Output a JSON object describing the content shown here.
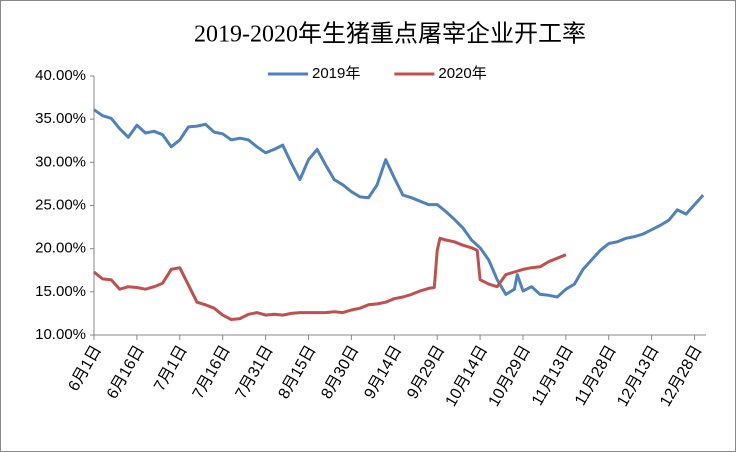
{
  "chart_data": {
    "type": "line",
    "title": "2019-2020年生猪重点屠宰企业开工率",
    "legend": "top",
    "grid": false,
    "xlim": [
      0,
      214
    ],
    "xticks": [
      {
        "value": 0,
        "label": "6月1日"
      },
      {
        "value": 15,
        "label": "6月16日"
      },
      {
        "value": 30,
        "label": "7月1日"
      },
      {
        "value": 45,
        "label": "7月16日"
      },
      {
        "value": 60,
        "label": "7月31日"
      },
      {
        "value": 75,
        "label": "8月15日"
      },
      {
        "value": 90,
        "label": "8月30日"
      },
      {
        "value": 105,
        "label": "9月14日"
      },
      {
        "value": 120,
        "label": "9月29日"
      },
      {
        "value": 135,
        "label": "10月14日"
      },
      {
        "value": 150,
        "label": "10月29日"
      },
      {
        "value": 165,
        "label": "11月13日"
      },
      {
        "value": 180,
        "label": "11月28日"
      },
      {
        "value": 195,
        "label": "12月13日"
      },
      {
        "value": 210,
        "label": "12月28日"
      }
    ],
    "ylim": [
      10,
      40
    ],
    "yticks": [
      {
        "value": 10,
        "label": "10.00%"
      },
      {
        "value": 15,
        "label": "15.00%"
      },
      {
        "value": 20,
        "label": "20.00%"
      },
      {
        "value": 25,
        "label": "25.00%"
      },
      {
        "value": 30,
        "label": "30.00%"
      },
      {
        "value": 35,
        "label": "35.00%"
      },
      {
        "value": 40,
        "label": "40.00%"
      }
    ],
    "series": [
      {
        "name": "2019年",
        "color": "#4f81bd",
        "x": [
          0,
          3,
          6,
          9,
          12,
          15,
          18,
          21,
          24,
          27,
          30,
          33,
          36,
          39,
          42,
          45,
          48,
          51,
          54,
          57,
          60,
          63,
          66,
          69,
          72,
          75,
          78,
          81,
          84,
          87,
          90,
          93,
          96,
          99,
          102,
          105,
          108,
          111,
          114,
          117,
          120,
          123,
          126,
          129,
          132,
          135,
          138,
          141,
          144,
          147,
          148,
          150,
          153,
          156,
          159,
          162,
          165,
          168,
          171,
          174,
          177,
          180,
          183,
          186,
          189,
          192,
          195,
          198,
          201,
          204,
          207,
          210,
          213
        ],
        "values": [
          36.1,
          35.4,
          35.1,
          33.9,
          32.9,
          34.3,
          33.4,
          33.6,
          33.2,
          31.8,
          32.6,
          34.1,
          34.2,
          34.4,
          33.5,
          33.3,
          32.6,
          32.8,
          32.6,
          31.8,
          31.1,
          31.5,
          32.0,
          29.9,
          28.0,
          30.3,
          31.5,
          29.7,
          28.0,
          27.4,
          26.6,
          26.0,
          25.9,
          27.4,
          30.3,
          28.2,
          26.2,
          25.9,
          25.5,
          25.1,
          25.1,
          24.3,
          23.4,
          22.4,
          21.0,
          20.1,
          18.7,
          16.4,
          14.7,
          15.3,
          17.0,
          15.1,
          15.6,
          14.7,
          14.6,
          14.4,
          15.3,
          15.9,
          17.6,
          18.7,
          19.8,
          20.6,
          20.8,
          21.2,
          21.4,
          21.7,
          22.2,
          22.7,
          23.3,
          24.5,
          24.0,
          25.1,
          26.2
        ]
      },
      {
        "name": "2020年",
        "color": "#c0504d",
        "x": [
          0,
          3,
          6,
          9,
          12,
          15,
          18,
          21,
          24,
          27,
          30,
          33,
          36,
          39,
          42,
          45,
          48,
          51,
          54,
          57,
          60,
          63,
          66,
          69,
          72,
          75,
          78,
          81,
          84,
          87,
          90,
          93,
          96,
          99,
          102,
          105,
          108,
          111,
          114,
          117,
          119,
          120,
          121,
          123,
          126,
          129,
          132,
          134,
          135,
          138,
          141,
          144,
          147,
          150,
          153,
          156,
          159,
          162,
          165
        ],
        "values": [
          17.3,
          16.5,
          16.4,
          15.3,
          15.6,
          15.5,
          15.3,
          15.6,
          16.0,
          17.6,
          17.8,
          15.8,
          13.8,
          13.5,
          13.1,
          12.3,
          11.8,
          11.9,
          12.4,
          12.6,
          12.3,
          12.4,
          12.3,
          12.5,
          12.6,
          12.6,
          12.6,
          12.6,
          12.7,
          12.6,
          12.9,
          13.1,
          13.5,
          13.6,
          13.8,
          14.2,
          14.4,
          14.7,
          15.1,
          15.4,
          15.5,
          19.8,
          21.2,
          21.0,
          20.8,
          20.4,
          20.1,
          19.8,
          16.4,
          15.9,
          15.6,
          17.0,
          17.3,
          17.6,
          17.8,
          17.9,
          18.5,
          18.9,
          19.3
        ]
      }
    ]
  }
}
